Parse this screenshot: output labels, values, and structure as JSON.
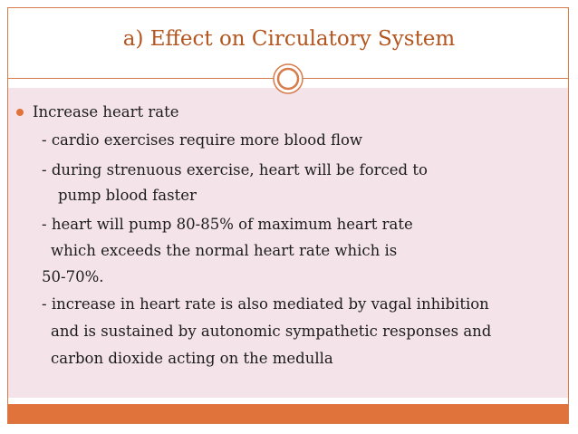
{
  "slide": {
    "title": "a) Effect on Circulatory System",
    "bullet": {
      "heading": "Increase heart rate",
      "lines": [
        "- cardio exercises require more blood flow",
        "- during strenuous exercise, heart will be forced to",
        "pump blood faster",
        "- heart will pump 80-85% of maximum heart rate",
        "which exceeds the normal heart rate which is",
        "50-70%.",
        "- increase in heart rate is also mediated by vagal inhibition",
        "and is sustained by autonomic sympathetic responses and",
        "carbon dioxide acting on the medulla"
      ]
    }
  },
  "colors": {
    "accent": "#e0733c",
    "title": "#b3551f",
    "content_background": "#f4e4ea",
    "border": "#d77b4a"
  },
  "icons": {
    "ornament": "double-circle-ornament-icon",
    "bullet": "bullet-dot-icon"
  }
}
